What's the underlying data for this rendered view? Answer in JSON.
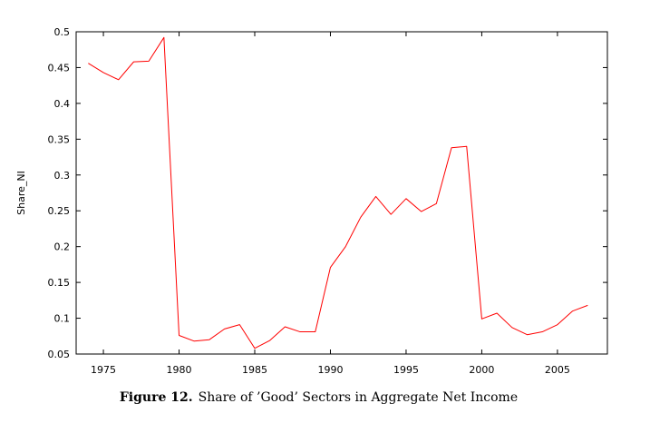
{
  "chart_data": {
    "type": "line",
    "xlabel": "",
    "ylabel": "Share_NI",
    "xlim": [
      1973.2,
      2008.3
    ],
    "ylim": [
      0.05,
      0.5
    ],
    "xticks": [
      1975,
      1980,
      1985,
      1990,
      1995,
      2000,
      2005
    ],
    "xtick_labels": [
      "1975",
      "1980",
      "1985",
      "1990",
      "1995",
      "2000",
      "2005"
    ],
    "yticks": [
      0.05,
      0.1,
      0.15,
      0.2,
      0.25,
      0.3,
      0.35,
      0.4,
      0.45,
      0.5
    ],
    "ytick_labels": [
      "0.05",
      "0.1",
      "0.15",
      "0.2",
      "0.25",
      "0.3",
      "0.35",
      "0.4",
      "0.45",
      "0.5"
    ],
    "grid": false,
    "series": [
      {
        "color": "#ff0000",
        "x": [
          1974,
          1975,
          1976,
          1977,
          1978,
          1979,
          1980,
          1981,
          1982,
          1983,
          1984,
          1985,
          1986,
          1987,
          1988,
          1989,
          1990,
          1991,
          1992,
          1993,
          1994,
          1995,
          1996,
          1997,
          1998,
          1999,
          2000,
          2001,
          2002,
          2003,
          2004,
          2005,
          2006,
          2007
        ],
        "values": [
          0.456,
          0.443,
          0.433,
          0.458,
          0.459,
          0.492,
          0.076,
          0.068,
          0.07,
          0.085,
          0.091,
          0.058,
          0.069,
          0.088,
          0.081,
          0.081,
          0.171,
          0.2,
          0.241,
          0.27,
          0.245,
          0.267,
          0.249,
          0.26,
          0.338,
          0.34,
          0.099,
          0.107,
          0.087,
          0.077,
          0.081,
          0.091,
          0.11,
          0.118
        ]
      }
    ]
  },
  "caption": {
    "figure_number": "Figure 12.",
    "text": "Share of ’Good’ Sectors in Aggregate Net Income"
  }
}
